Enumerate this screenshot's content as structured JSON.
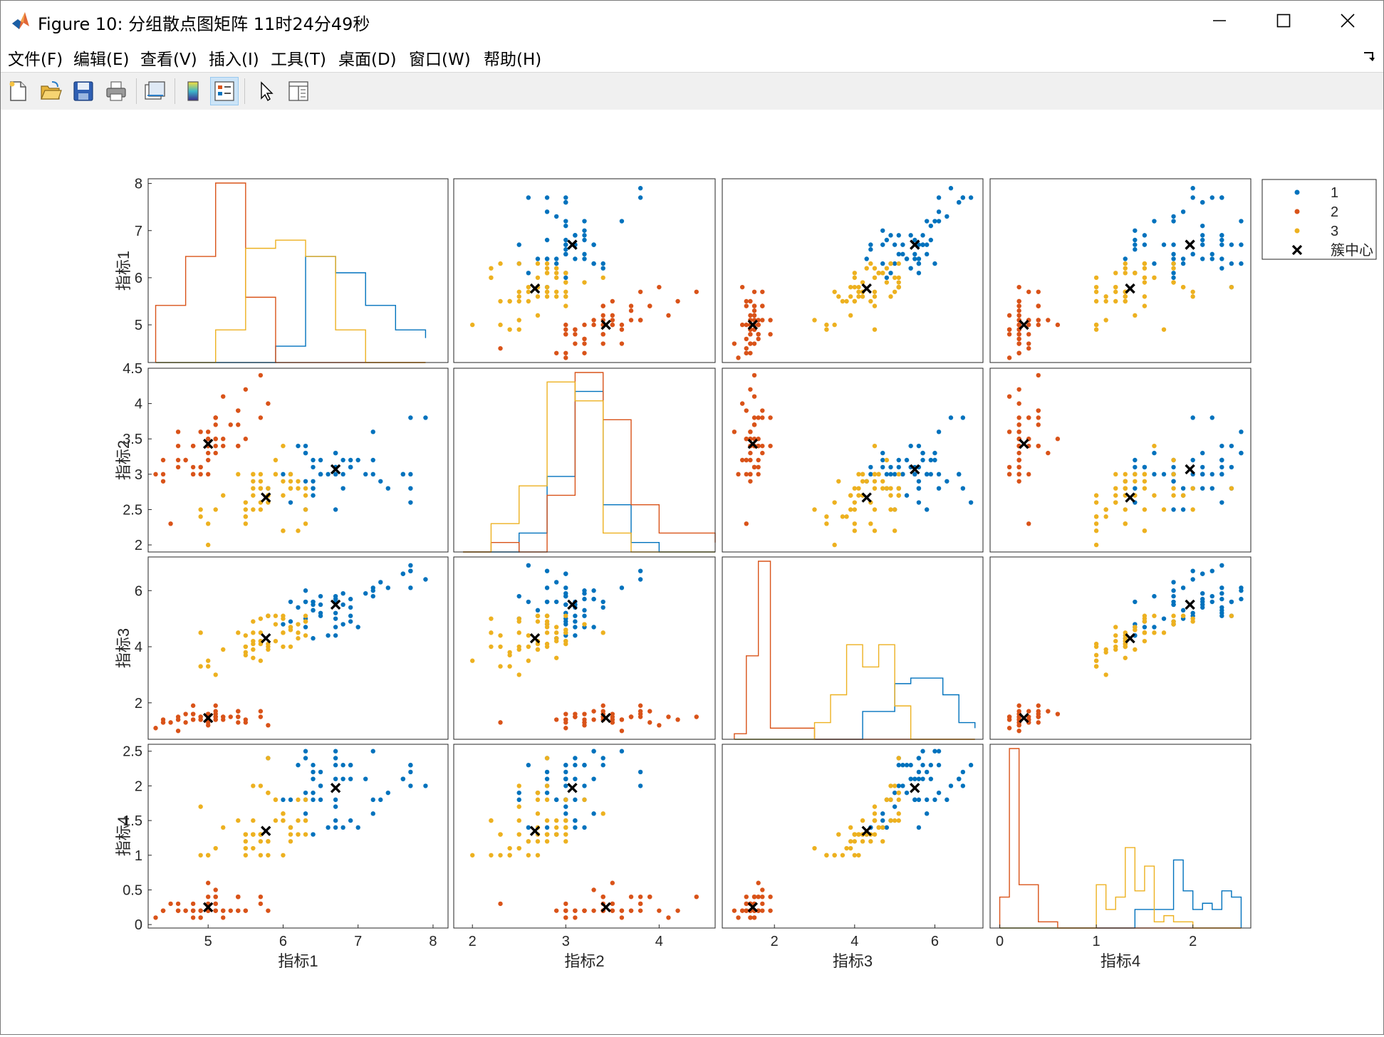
{
  "window": {
    "title": "Figure 10: 分组散点图矩阵  11时24分49秒",
    "controls": {
      "minimize": "minimize",
      "maximize": "maximize",
      "close": "close"
    }
  },
  "menubar": {
    "items": [
      {
        "label": "文件(F)"
      },
      {
        "label": "编辑(E)"
      },
      {
        "label": "查看(V)"
      },
      {
        "label": "插入(I)"
      },
      {
        "label": "工具(T)"
      },
      {
        "label": "桌面(D)"
      },
      {
        "label": "窗口(W)"
      },
      {
        "label": "帮助(H)"
      }
    ]
  },
  "toolbar": {
    "buttons": [
      {
        "icon": "new-figure-icon"
      },
      {
        "icon": "open-file-icon"
      },
      {
        "icon": "save-icon"
      },
      {
        "icon": "print-icon"
      },
      {
        "icon": "link-plot-icon"
      },
      {
        "icon": "colorbar-icon"
      },
      {
        "icon": "legend-icon",
        "pressed": true
      },
      {
        "icon": "pointer-icon"
      },
      {
        "icon": "property-editor-icon"
      }
    ]
  },
  "chart_data": {
    "type": "scatter",
    "title": "",
    "variables": [
      "指标1",
      "指标2",
      "指标3",
      "指标4"
    ],
    "ylabels": [
      "指标1",
      "指标2",
      "指标3",
      "指标4"
    ],
    "xlabels": [
      "指标1",
      "指标2",
      "指标3",
      "指标4"
    ],
    "xranges": [
      [
        4.2,
        8.2
      ],
      [
        1.8,
        4.6
      ],
      [
        0.7,
        7.2
      ],
      [
        -0.1,
        2.6
      ]
    ],
    "yranges": [
      [
        4.2,
        8.1
      ],
      [
        1.9,
        4.5
      ],
      [
        0.7,
        7.2
      ],
      [
        -0.05,
        2.6
      ]
    ],
    "xticks": [
      [
        5,
        6,
        7,
        8
      ],
      [
        2,
        3,
        4
      ],
      [
        2,
        4,
        6
      ],
      [
        0,
        1,
        2
      ]
    ],
    "yticks": [
      [
        5,
        6,
        7,
        8
      ],
      [
        2,
        2.5,
        3,
        3.5,
        4,
        4.5
      ],
      [
        2,
        4,
        6
      ],
      [
        0,
        0.5,
        1,
        1.5,
        2,
        2.5
      ]
    ],
    "groups": [
      {
        "name": "1",
        "color": "#0072BD"
      },
      {
        "name": "2",
        "color": "#D95319"
      },
      {
        "name": "3",
        "color": "#EDB120"
      }
    ],
    "centroid_label": "簇中心",
    "legend_position": "outside-top-right",
    "centroids": [
      [
        6.7,
        3.07,
        5.5,
        1.97
      ],
      [
        5.0,
        3.43,
        1.46,
        0.25
      ],
      [
        5.77,
        2.67,
        4.3,
        1.35
      ]
    ],
    "points": {
      "1": [
        [
          6.3,
          3.3,
          6.0,
          2.5
        ],
        [
          7.1,
          3.0,
          5.9,
          2.1
        ],
        [
          6.5,
          3.0,
          5.8,
          2.2
        ],
        [
          7.6,
          3.0,
          6.6,
          2.1
        ],
        [
          7.3,
          2.9,
          6.3,
          1.8
        ],
        [
          6.7,
          2.5,
          5.8,
          1.8
        ],
        [
          7.2,
          3.6,
          6.1,
          2.5
        ],
        [
          6.5,
          3.2,
          5.1,
          2.0
        ],
        [
          6.4,
          2.7,
          5.3,
          1.9
        ],
        [
          6.8,
          3.0,
          5.5,
          2.1
        ],
        [
          5.8,
          2.8,
          5.1,
          2.4
        ],
        [
          6.4,
          3.2,
          5.3,
          2.3
        ],
        [
          6.5,
          3.0,
          5.5,
          1.8
        ],
        [
          7.7,
          3.8,
          6.7,
          2.2
        ],
        [
          7.7,
          2.6,
          6.9,
          2.3
        ],
        [
          6.9,
          3.2,
          5.7,
          2.3
        ],
        [
          7.7,
          2.8,
          6.7,
          2.0
        ],
        [
          6.7,
          3.3,
          5.7,
          2.1
        ],
        [
          7.2,
          3.2,
          6.0,
          1.8
        ],
        [
          6.4,
          2.8,
          5.6,
          2.1
        ],
        [
          7.2,
          3.0,
          5.8,
          1.6
        ],
        [
          7.4,
          2.8,
          6.1,
          1.9
        ],
        [
          7.9,
          3.8,
          6.4,
          2.0
        ],
        [
          6.4,
          2.8,
          5.6,
          2.2
        ],
        [
          6.1,
          2.6,
          5.6,
          1.4
        ],
        [
          7.7,
          3.0,
          6.1,
          2.3
        ],
        [
          6.3,
          3.4,
          5.6,
          2.4
        ],
        [
          6.4,
          3.1,
          5.5,
          1.8
        ],
        [
          6.9,
          3.1,
          5.4,
          2.1
        ],
        [
          6.7,
          3.1,
          5.6,
          2.4
        ],
        [
          6.9,
          3.1,
          5.1,
          2.3
        ],
        [
          6.8,
          3.2,
          5.9,
          2.3
        ],
        [
          6.7,
          3.3,
          5.7,
          2.5
        ],
        [
          6.7,
          3.0,
          5.2,
          2.3
        ],
        [
          6.5,
          3.0,
          5.2,
          2.0
        ],
        [
          6.2,
          3.4,
          5.4,
          2.3
        ],
        [
          6.7,
          3.0,
          5.0,
          1.7
        ],
        [
          6.9,
          3.1,
          4.9,
          1.5
        ],
        [
          7.0,
          3.2,
          4.7,
          1.4
        ],
        [
          6.3,
          2.9,
          5.6,
          1.8
        ],
        [
          6.0,
          3.0,
          4.8,
          1.8
        ],
        [
          7.6,
          3.0,
          6.6,
          2.1
        ],
        [
          6.3,
          2.5,
          5.0,
          1.9
        ],
        [
          6.1,
          3.0,
          4.9,
          1.8
        ],
        [
          6.4,
          2.9,
          4.3,
          1.3
        ],
        [
          6.6,
          3.0,
          4.4,
          1.4
        ],
        [
          6.8,
          2.8,
          4.8,
          1.4
        ],
        [
          6.7,
          3.1,
          4.4,
          1.4
        ],
        [
          6.3,
          3.3,
          4.7,
          1.6
        ],
        [
          6.7,
          3.1,
          4.7,
          1.5
        ]
      ],
      "2": [
        [
          5.1,
          3.5,
          1.4,
          0.2
        ],
        [
          4.9,
          3.0,
          1.4,
          0.2
        ],
        [
          4.7,
          3.2,
          1.3,
          0.2
        ],
        [
          4.6,
          3.1,
          1.5,
          0.2
        ],
        [
          5.0,
          3.6,
          1.4,
          0.2
        ],
        [
          5.4,
          3.9,
          1.7,
          0.4
        ],
        [
          4.6,
          3.4,
          1.4,
          0.3
        ],
        [
          5.0,
          3.4,
          1.5,
          0.2
        ],
        [
          4.4,
          2.9,
          1.4,
          0.2
        ],
        [
          4.9,
          3.1,
          1.5,
          0.1
        ],
        [
          5.4,
          3.7,
          1.5,
          0.2
        ],
        [
          4.8,
          3.4,
          1.6,
          0.2
        ],
        [
          4.8,
          3.0,
          1.4,
          0.1
        ],
        [
          4.3,
          3.0,
          1.1,
          0.1
        ],
        [
          5.8,
          4.0,
          1.2,
          0.2
        ],
        [
          5.7,
          4.4,
          1.5,
          0.4
        ],
        [
          5.4,
          3.9,
          1.3,
          0.4
        ],
        [
          5.1,
          3.5,
          1.4,
          0.3
        ],
        [
          5.7,
          3.8,
          1.7,
          0.3
        ],
        [
          5.1,
          3.8,
          1.5,
          0.3
        ],
        [
          5.4,
          3.4,
          1.7,
          0.2
        ],
        [
          5.1,
          3.7,
          1.5,
          0.4
        ],
        [
          4.6,
          3.6,
          1.0,
          0.2
        ],
        [
          5.1,
          3.3,
          1.7,
          0.5
        ],
        [
          4.8,
          3.4,
          1.9,
          0.2
        ],
        [
          5.0,
          3.0,
          1.6,
          0.2
        ],
        [
          5.0,
          3.4,
          1.6,
          0.4
        ],
        [
          5.2,
          3.5,
          1.5,
          0.2
        ],
        [
          5.2,
          3.4,
          1.4,
          0.2
        ],
        [
          4.7,
          3.2,
          1.6,
          0.2
        ],
        [
          4.8,
          3.1,
          1.6,
          0.2
        ],
        [
          5.4,
          3.4,
          1.5,
          0.4
        ],
        [
          5.2,
          4.1,
          1.5,
          0.1
        ],
        [
          5.5,
          4.2,
          1.4,
          0.2
        ],
        [
          4.9,
          3.1,
          1.5,
          0.2
        ],
        [
          5.0,
          3.2,
          1.2,
          0.2
        ],
        [
          5.5,
          3.5,
          1.3,
          0.2
        ],
        [
          4.9,
          3.6,
          1.4,
          0.1
        ],
        [
          4.4,
          3.0,
          1.3,
          0.2
        ],
        [
          5.1,
          3.4,
          1.5,
          0.2
        ],
        [
          5.0,
          3.5,
          1.3,
          0.3
        ],
        [
          4.5,
          2.3,
          1.3,
          0.3
        ],
        [
          4.4,
          3.2,
          1.3,
          0.2
        ],
        [
          5.0,
          3.5,
          1.6,
          0.6
        ],
        [
          5.1,
          3.8,
          1.9,
          0.4
        ],
        [
          4.8,
          3.0,
          1.4,
          0.3
        ],
        [
          5.1,
          3.8,
          1.6,
          0.2
        ],
        [
          4.6,
          3.2,
          1.4,
          0.2
        ],
        [
          5.3,
          3.7,
          1.5,
          0.2
        ],
        [
          5.0,
          3.3,
          1.4,
          0.2
        ]
      ],
      "3": [
        [
          5.5,
          2.3,
          4.0,
          1.3
        ],
        [
          5.7,
          2.8,
          4.5,
          1.3
        ],
        [
          4.9,
          2.4,
          3.3,
          1.0
        ],
        [
          5.2,
          2.7,
          3.9,
          1.4
        ],
        [
          5.0,
          2.0,
          3.5,
          1.0
        ],
        [
          5.9,
          3.0,
          4.2,
          1.5
        ],
        [
          6.0,
          2.2,
          4.0,
          1.0
        ],
        [
          6.1,
          2.9,
          4.7,
          1.4
        ],
        [
          5.6,
          2.9,
          3.6,
          1.3
        ],
        [
          5.6,
          3.0,
          4.5,
          1.5
        ],
        [
          5.8,
          2.7,
          4.1,
          1.0
        ],
        [
          6.2,
          2.2,
          4.5,
          1.5
        ],
        [
          5.6,
          2.5,
          3.9,
          1.1
        ],
        [
          5.9,
          3.2,
          4.8,
          1.8
        ],
        [
          6.1,
          2.8,
          4.0,
          1.3
        ],
        [
          6.3,
          2.5,
          4.9,
          1.5
        ],
        [
          6.1,
          2.8,
          4.7,
          1.2
        ],
        [
          6.0,
          2.9,
          4.5,
          1.5
        ],
        [
          5.7,
          2.6,
          3.5,
          1.0
        ],
        [
          5.5,
          2.4,
          3.8,
          1.1
        ],
        [
          5.5,
          2.4,
          3.7,
          1.0
        ],
        [
          5.8,
          2.7,
          3.9,
          1.2
        ],
        [
          6.0,
          2.7,
          5.1,
          1.6
        ],
        [
          5.4,
          3.0,
          4.5,
          1.5
        ],
        [
          6.0,
          3.4,
          4.5,
          1.6
        ],
        [
          6.3,
          2.3,
          4.4,
          1.3
        ],
        [
          5.6,
          3.0,
          4.1,
          1.3
        ],
        [
          5.5,
          2.5,
          4.0,
          1.3
        ],
        [
          5.5,
          2.6,
          4.4,
          1.2
        ],
        [
          6.1,
          3.0,
          4.6,
          1.4
        ],
        [
          5.8,
          2.6,
          4.0,
          1.2
        ],
        [
          5.0,
          2.3,
          3.3,
          1.0
        ],
        [
          5.6,
          2.7,
          4.2,
          1.3
        ],
        [
          5.7,
          3.0,
          4.2,
          1.2
        ],
        [
          5.7,
          2.9,
          4.2,
          1.3
        ],
        [
          6.2,
          2.9,
          4.3,
          1.3
        ],
        [
          5.1,
          2.5,
          3.0,
          1.1
        ],
        [
          5.7,
          2.8,
          4.1,
          1.3
        ],
        [
          4.9,
          2.5,
          4.5,
          1.7
        ],
        [
          5.7,
          2.5,
          5.0,
          2.0
        ],
        [
          5.8,
          2.8,
          5.1,
          2.4
        ],
        [
          6.0,
          2.2,
          5.0,
          1.5
        ],
        [
          5.6,
          2.8,
          4.9,
          2.0
        ],
        [
          6.3,
          2.7,
          4.9,
          1.8
        ],
        [
          6.2,
          2.8,
          4.8,
          1.8
        ],
        [
          6.1,
          3.0,
          4.6,
          1.4
        ],
        [
          5.8,
          2.7,
          5.1,
          1.9
        ],
        [
          5.9,
          3.0,
          5.1,
          1.8
        ],
        [
          6.3,
          2.8,
          5.1,
          1.5
        ],
        [
          5.8,
          2.7,
          5.1,
          1.9
        ]
      ]
    },
    "histograms": [
      {
        "var": "指标1",
        "edges": [
          4.3,
          4.7,
          5.1,
          5.5,
          5.9,
          6.3,
          6.7,
          7.1,
          7.5,
          7.9
        ],
        "counts": {
          "1": [
            0,
            0,
            0,
            0,
            2,
            13,
            11,
            7,
            4,
            3
          ],
          "2": [
            7,
            13,
            22,
            8,
            0,
            0,
            0,
            0,
            0,
            0
          ],
          "3": [
            0,
            0,
            4,
            14,
            15,
            13,
            4,
            0,
            0,
            0
          ]
        }
      },
      {
        "var": "指标2",
        "edges": [
          1.9,
          2.2,
          2.5,
          2.8,
          3.1,
          3.4,
          3.7,
          4.0,
          4.3,
          4.6
        ],
        "counts": {
          "1": [
            0,
            0,
            2,
            8,
            17,
            5,
            1,
            0,
            0,
            0
          ],
          "2": [
            0,
            1,
            0,
            6,
            19,
            14,
            5,
            2,
            2,
            1
          ],
          "3": [
            0,
            3,
            7,
            18,
            16,
            2,
            0,
            0,
            0,
            0
          ]
        }
      },
      {
        "var": "指标3",
        "edges": [
          1.0,
          1.3,
          1.6,
          1.9,
          3.0,
          3.4,
          3.8,
          4.2,
          4.6,
          5.0,
          5.4,
          5.8,
          6.2,
          6.6,
          7.0
        ],
        "counts": {
          "1": [
            0,
            0,
            0,
            0,
            0,
            0,
            0,
            5,
            5,
            10,
            11,
            11,
            8,
            3,
            2
          ],
          "2": [
            1,
            15,
            32,
            2,
            0,
            0,
            0,
            0,
            0,
            0,
            0,
            0,
            0,
            0,
            0
          ],
          "3": [
            0,
            0,
            0,
            0,
            3,
            8,
            17,
            13,
            17,
            6,
            0,
            0,
            0,
            0,
            0
          ]
        }
      },
      {
        "var": "指标4",
        "edges": [
          0.0,
          0.1,
          0.2,
          0.3,
          0.4,
          0.5,
          0.6,
          1.0,
          1.1,
          1.2,
          1.3,
          1.4,
          1.5,
          1.6,
          1.7,
          1.8,
          1.9,
          2.0,
          2.1,
          2.2,
          2.3,
          2.4,
          2.5
        ],
        "counts": {
          "1": [
            0,
            0,
            0,
            0,
            0,
            0,
            0,
            0,
            0,
            0,
            0,
            3,
            3,
            3,
            3,
            11,
            6,
            3,
            4,
            3,
            6,
            5,
            0
          ],
          "2": [
            5,
            29,
            7,
            7,
            1,
            1,
            0,
            0,
            0,
            0,
            0,
            0,
            0,
            0,
            0,
            0,
            0,
            0,
            0,
            0,
            0,
            0,
            0
          ],
          "3": [
            0,
            0,
            0,
            0,
            0,
            0,
            0,
            7,
            3,
            5,
            13,
            6,
            10,
            1,
            2,
            1,
            1,
            0,
            0,
            0,
            0,
            0,
            0
          ]
        }
      }
    ]
  }
}
